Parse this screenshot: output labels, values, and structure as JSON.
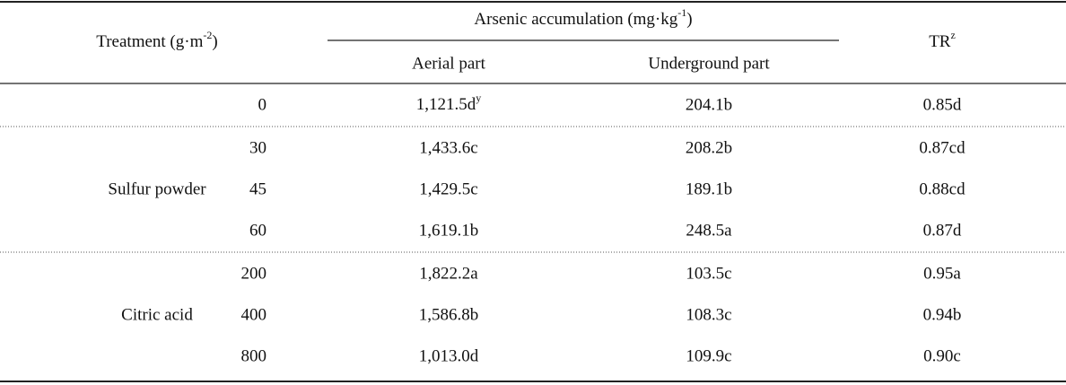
{
  "table": {
    "header": {
      "treatment": {
        "text": "Treatment (g·m",
        "sup": "-2",
        "tail": ")"
      },
      "arsenic": {
        "text": "Arsenic accumulation (mg·kg",
        "sup": "-1",
        "tail": ")"
      },
      "aerial": "Aerial part",
      "underground": "Underground part",
      "tr": {
        "text": "TR",
        "sup": "z"
      }
    },
    "sections": [
      {
        "rows": [
          {
            "dose": 0,
            "aerial": {
              "text": "1,121.5d",
              "sup": "y"
            },
            "underground": "204.1b",
            "tr": "0.85d"
          }
        ]
      },
      {
        "label": "Sulfur powder",
        "rows": [
          {
            "dose": 30,
            "aerial": "1,433.6c",
            "underground": "208.2b",
            "tr": "0.87cd"
          },
          {
            "dose": 45,
            "aerial": "1,429.5c",
            "underground": "189.1b",
            "tr": "0.88cd"
          },
          {
            "dose": 60,
            "aerial": "1,619.1b",
            "underground": "248.5a",
            "tr": "0.87d"
          }
        ]
      },
      {
        "label": "Citric acid",
        "rows": [
          {
            "dose": 200,
            "aerial": "1,822.2a",
            "underground": "103.5c",
            "tr": "0.95a"
          },
          {
            "dose": 400,
            "aerial": "1,586.8b",
            "underground": "108.3c",
            "tr": "0.94b"
          },
          {
            "dose": 800,
            "aerial": "1,013.0d",
            "underground": "109.9c",
            "tr": "0.90c"
          }
        ]
      }
    ]
  }
}
